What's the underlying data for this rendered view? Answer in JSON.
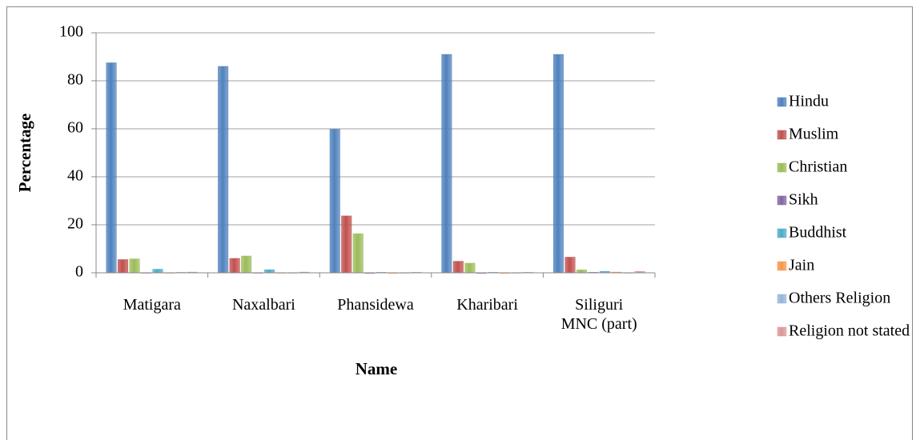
{
  "chart_data": {
    "type": "bar",
    "x_label": "Name",
    "y_label": "Percentage",
    "categories": [
      "Matigara",
      "Naxalbari",
      "Phansidewa",
      "Kharibari",
      "Siliguri MNC (part)"
    ],
    "series": [
      {
        "name": "Hindu",
        "color": "#4f81bd",
        "values": [
          87.5,
          86,
          59.8,
          91,
          91
        ]
      },
      {
        "name": "Muslim",
        "color": "#c0504d",
        "values": [
          5.5,
          6,
          23.7,
          4.8,
          6.5
        ]
      },
      {
        "name": "Christian",
        "color": "#9bbb59",
        "values": [
          5.8,
          7,
          16.3,
          4,
          1.2
        ]
      },
      {
        "name": "Sikh",
        "color": "#8064a2",
        "values": [
          0.1,
          0.1,
          0.05,
          0.05,
          0.2
        ]
      },
      {
        "name": "Buddhist",
        "color": "#4bacc6",
        "values": [
          1.5,
          1.3,
          0.2,
          0.2,
          0.6
        ]
      },
      {
        "name": "Jain",
        "color": "#f79646",
        "values": [
          0.1,
          0.1,
          0.05,
          0.05,
          0.3
        ]
      },
      {
        "name": "Others Religion",
        "color": "#95b3d7",
        "values": [
          0.2,
          0.1,
          0.1,
          0.1,
          0.1
        ]
      },
      {
        "name": "Religion not stated",
        "color": "#d99694",
        "values": [
          0.3,
          0.3,
          0.2,
          0.2,
          0.6
        ]
      }
    ],
    "ylim": [
      0,
      100
    ],
    "yticks": [
      0,
      20,
      40,
      60,
      80,
      100
    ],
    "grid": true,
    "legend": "right"
  }
}
